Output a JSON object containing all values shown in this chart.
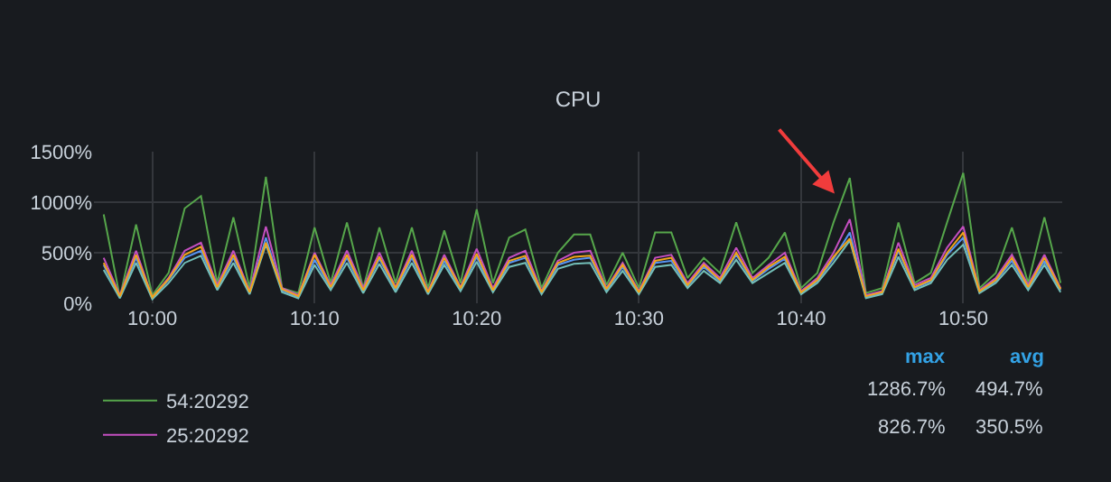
{
  "chart_data": {
    "type": "line",
    "title": "CPU",
    "x": [
      9.95,
      9.9667,
      9.9833,
      10,
      10.0167,
      10.0333,
      10.05,
      10.0667,
      10.0833,
      10.1,
      10.1167,
      10.1333,
      10.15,
      10.1667,
      10.1833,
      10.2,
      10.2167,
      10.2333,
      10.25,
      10.2667,
      10.2833,
      10.3,
      10.3167,
      10.3333,
      10.35,
      10.3667,
      10.3833,
      10.4,
      10.4167,
      10.4333,
      10.45,
      10.4667,
      10.4833,
      10.5,
      10.5167,
      10.5333,
      10.55,
      10.5667,
      10.5833,
      10.6,
      10.6167,
      10.6333,
      10.65,
      10.6667,
      10.6833,
      10.7,
      10.7167,
      10.7333,
      10.75,
      10.7667,
      10.7833,
      10.8,
      10.8167,
      10.8333,
      10.85,
      10.8667,
      10.8833,
      10.9,
      10.9167,
      10.9333
    ],
    "series": [
      {
        "name": "54:20292",
        "color": "#56a64b",
        "values": [
          880,
          60,
          780,
          80,
          300,
          940,
          1060,
          200,
          850,
          150,
          1250,
          150,
          100,
          750,
          200,
          800,
          150,
          750,
          200,
          750,
          150,
          720,
          200,
          930,
          200,
          650,
          730,
          150,
          500,
          680,
          680,
          180,
          500,
          150,
          700,
          700,
          250,
          450,
          300,
          800,
          300,
          450,
          700,
          150,
          300,
          800,
          1240,
          100,
          150,
          800,
          200,
          300,
          800,
          1290,
          150,
          300,
          750,
          200,
          850,
          200
        ]
      },
      {
        "name": "25:20292",
        "color": "#c44fc0",
        "values": [
          450,
          80,
          520,
          60,
          250,
          520,
          600,
          180,
          520,
          120,
          760,
          150,
          80,
          500,
          180,
          520,
          150,
          500,
          160,
          520,
          120,
          480,
          160,
          540,
          150,
          450,
          520,
          120,
          420,
          500,
          520,
          150,
          400,
          120,
          450,
          480,
          200,
          400,
          250,
          550,
          250,
          380,
          500,
          120,
          250,
          500,
          830,
          80,
          120,
          600,
          180,
          250,
          550,
          760,
          130,
          250,
          480,
          180,
          480,
          150
        ]
      },
      {
        "color": "#5794f2",
        "values": [
          380,
          60,
          450,
          50,
          230,
          450,
          520,
          150,
          450,
          100,
          650,
          130,
          60,
          430,
          150,
          450,
          120,
          440,
          130,
          450,
          100,
          420,
          140,
          460,
          120,
          400,
          450,
          100,
          380,
          430,
          450,
          130,
          360,
          100,
          400,
          420,
          170,
          360,
          220,
          480,
          220,
          340,
          440,
          100,
          220,
          440,
          700,
          60,
          100,
          520,
          150,
          220,
          480,
          650,
          110,
          220,
          420,
          150,
          420,
          130
        ]
      },
      {
        "color": "#73bfb8",
        "values": [
          330,
          50,
          400,
          40,
          200,
          400,
          470,
          130,
          400,
          90,
          580,
          110,
          50,
          380,
          130,
          400,
          100,
          390,
          110,
          400,
          90,
          380,
          120,
          410,
          110,
          360,
          400,
          90,
          340,
          390,
          400,
          110,
          320,
          90,
          360,
          380,
          150,
          320,
          200,
          430,
          200,
          300,
          400,
          90,
          200,
          400,
          620,
          50,
          90,
          460,
          130,
          200,
          430,
          580,
          100,
          200,
          380,
          130,
          380,
          110
        ]
      },
      {
        "color": "#f2a51a",
        "values": [
          400,
          70,
          480,
          60,
          240,
          480,
          560,
          160,
          480,
          110,
          600,
          140,
          70,
          480,
          160,
          480,
          130,
          460,
          150,
          480,
          110,
          450,
          150,
          490,
          130,
          420,
          470,
          110,
          400,
          460,
          470,
          140,
          380,
          110,
          420,
          450,
          180,
          380,
          230,
          500,
          230,
          360,
          460,
          110,
          230,
          460,
          640,
          70,
          110,
          540,
          160,
          230,
          500,
          700,
          120,
          230,
          450,
          160,
          450,
          140
        ]
      }
    ],
    "xlim": [
      9.94,
      10.935
    ],
    "xticks": [
      {
        "value": 10,
        "label": "10:00"
      },
      {
        "value": 10.1667,
        "label": "10:10"
      },
      {
        "value": 10.3333,
        "label": "10:20"
      },
      {
        "value": 10.5,
        "label": "10:30"
      },
      {
        "value": 10.6667,
        "label": "10:40"
      },
      {
        "value": 10.8333,
        "label": "10:50"
      }
    ],
    "ylim": [
      0,
      1500
    ],
    "yticks": [
      {
        "value": 0,
        "label": "0%"
      },
      {
        "value": 500,
        "label": "500%"
      },
      {
        "value": 1000,
        "label": "1000%"
      },
      {
        "value": 1500,
        "label": "1500%"
      }
    ],
    "grid": true,
    "legend": "bottom",
    "annotations": [
      "max",
      "avg",
      "1286.7%",
      "494.7%",
      "826.7%",
      "350.5%"
    ]
  }
}
